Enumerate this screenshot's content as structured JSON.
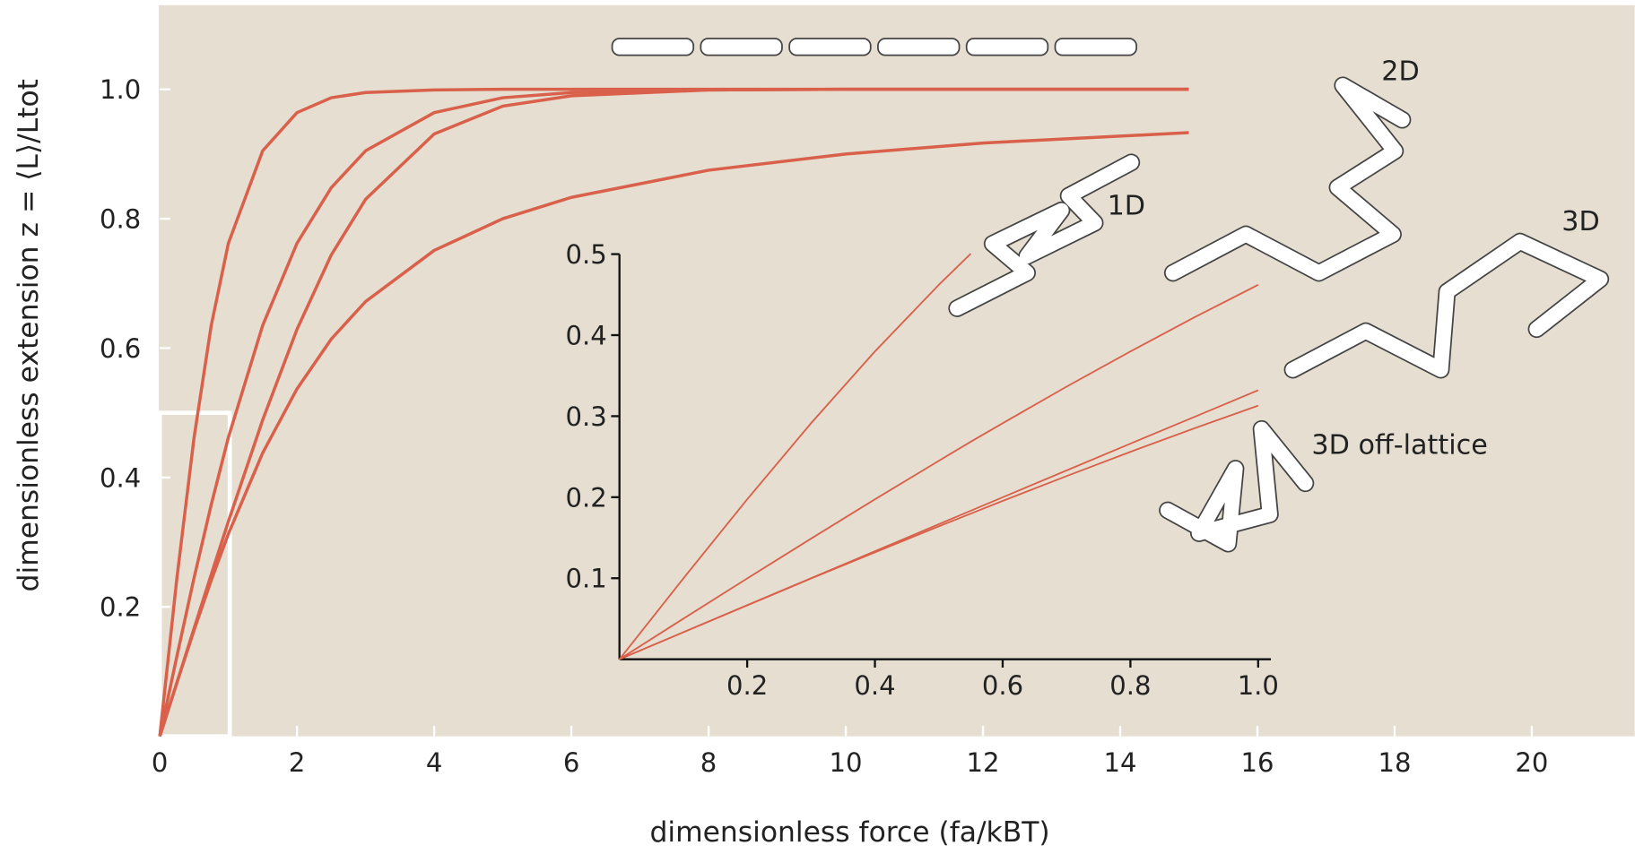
{
  "chart_data": [
    {
      "type": "line",
      "x_label": "dimensionless force (fa/kBT)",
      "y_label": "dimensionless extension  z = ⟨L⟩/Ltot",
      "x": [
        0,
        0.25,
        0.5,
        0.75,
        1,
        1.5,
        2,
        2.5,
        3,
        4,
        5,
        6,
        8,
        10,
        12,
        15
      ],
      "series": [
        {
          "name": "1D",
          "color": "#d9604a",
          "values": [
            0,
            0.245,
            0.462,
            0.635,
            0.762,
            0.905,
            0.964,
            0.987,
            0.995,
            0.999,
            1.0,
            1.0,
            1.0,
            1.0,
            1.0,
            1.0
          ]
        },
        {
          "name": "2D",
          "color": "#d9604a",
          "values": [
            0,
            0.124,
            0.245,
            0.358,
            0.462,
            0.635,
            0.762,
            0.848,
            0.905,
            0.964,
            0.987,
            0.995,
            0.999,
            1.0,
            1.0,
            1.0
          ]
        },
        {
          "name": "3D",
          "color": "#d9604a",
          "values": [
            0,
            0.083,
            0.167,
            0.25,
            0.332,
            0.489,
            0.629,
            0.744,
            0.83,
            0.931,
            0.974,
            0.99,
            0.999,
            1.0,
            1.0,
            1.0
          ]
        },
        {
          "name": "3D off-lattice",
          "color": "#d9604a",
          "values": [
            0,
            0.083,
            0.164,
            0.241,
            0.313,
            0.438,
            0.537,
            0.614,
            0.672,
            0.751,
            0.8,
            0.833,
            0.875,
            0.9,
            0.917,
            0.933
          ]
        }
      ],
      "xlim": [
        0,
        21.5
      ],
      "ylim": [
        0,
        1.13
      ],
      "xticks": [
        0,
        2,
        4,
        6,
        8,
        10,
        12,
        14,
        16,
        18,
        20
      ],
      "yticks": [
        0.2,
        0.4,
        0.6,
        0.8,
        {
          "value": 1,
          "label": "1.0"
        }
      ],
      "background": "#e6dfd1"
    },
    {
      "type": "line",
      "x": [
        0,
        0.1,
        0.2,
        0.3,
        0.4,
        0.5,
        0.55,
        0.6,
        0.7,
        0.8,
        0.9,
        1
      ],
      "series": [
        {
          "color": "#d9604a",
          "values": [
            0,
            0.0997,
            0.1974,
            0.2913,
            0.3799,
            0.4621,
            0.5005,
            null,
            null,
            null,
            null,
            null
          ]
        },
        {
          "color": "#d9604a",
          "values": [
            0,
            0.05,
            0.0997,
            0.1489,
            0.1974,
            0.2449,
            0.2685,
            0.2913,
            0.3364,
            0.3799,
            0.4219,
            0.4621
          ]
        },
        {
          "color": "#d9604a",
          "values": [
            0,
            0.0333,
            0.0667,
            0.1,
            0.1333,
            0.1666,
            0.1833,
            0.1999,
            0.233,
            0.2661,
            0.299,
            0.332
          ]
        },
        {
          "color": "#d9604a",
          "values": [
            0,
            0.0333,
            0.0665,
            0.0997,
            0.1319,
            0.164,
            0.1797,
            0.1954,
            0.226,
            0.256,
            0.285,
            0.313
          ]
        }
      ],
      "xlim": [
        0,
        1.02
      ],
      "ylim": [
        0,
        0.5
      ],
      "xticks": [
        0.2,
        0.4,
        0.6,
        0.8,
        {
          "value": 1,
          "label": "1.0"
        }
      ],
      "yticks": [
        0.1,
        0.2,
        0.3,
        0.4,
        0.5
      ]
    }
  ]
}
